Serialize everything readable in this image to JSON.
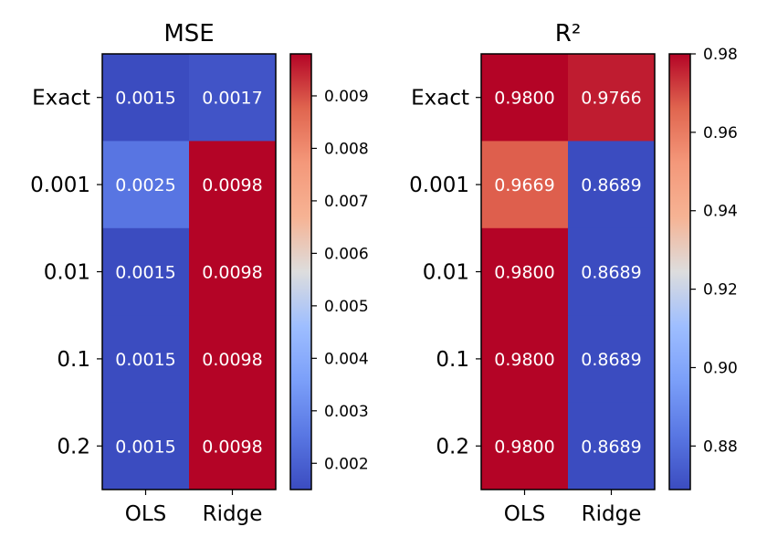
{
  "chart_data": [
    {
      "type": "heatmap",
      "title": "MSE",
      "columns": [
        "OLS",
        "Ridge"
      ],
      "rows": [
        "Exact",
        "0.001",
        "0.01",
        "0.1",
        "0.2"
      ],
      "values": [
        [
          0.0015,
          0.0017
        ],
        [
          0.0025,
          0.0098
        ],
        [
          0.0015,
          0.0098
        ],
        [
          0.0015,
          0.0098
        ],
        [
          0.0015,
          0.0098
        ]
      ],
      "labels": [
        [
          "0.0015",
          "0.0017"
        ],
        [
          "0.0025",
          "0.0098"
        ],
        [
          "0.0015",
          "0.0098"
        ],
        [
          "0.0015",
          "0.0098"
        ],
        [
          "0.0015",
          "0.0098"
        ]
      ],
      "colormap": "coolwarm",
      "colorbar": {
        "vmin": 0.0015,
        "vmax": 0.0098,
        "ticks": [
          0.002,
          0.003,
          0.004,
          0.005,
          0.006,
          0.007,
          0.008,
          0.009
        ],
        "tick_labels": [
          "0.002",
          "0.003",
          "0.004",
          "0.005",
          "0.006",
          "0.007",
          "0.008",
          "0.009"
        ]
      }
    },
    {
      "type": "heatmap",
      "title": "R²",
      "columns": [
        "OLS",
        "Ridge"
      ],
      "rows": [
        "Exact",
        "0.001",
        "0.01",
        "0.1",
        "0.2"
      ],
      "values": [
        [
          0.98,
          0.9766
        ],
        [
          0.9669,
          0.8689
        ],
        [
          0.98,
          0.8689
        ],
        [
          0.98,
          0.8689
        ],
        [
          0.98,
          0.8689
        ]
      ],
      "labels": [
        [
          "0.9800",
          "0.9766"
        ],
        [
          "0.9669",
          "0.8689"
        ],
        [
          "0.9800",
          "0.8689"
        ],
        [
          "0.9800",
          "0.8689"
        ],
        [
          "0.9800",
          "0.8689"
        ]
      ],
      "colormap": "coolwarm",
      "colorbar": {
        "vmin": 0.8689,
        "vmax": 0.98,
        "ticks": [
          0.88,
          0.9,
          0.92,
          0.94,
          0.96,
          0.98
        ],
        "tick_labels": [
          "0.88",
          "0.90",
          "0.92",
          "0.94",
          "0.96",
          "0.98"
        ]
      }
    }
  ]
}
